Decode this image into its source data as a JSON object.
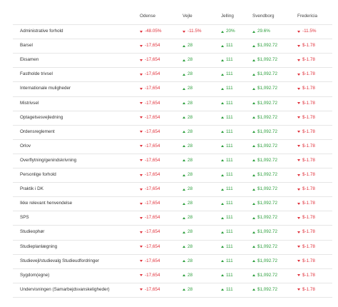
{
  "table": {
    "columns": [
      "Odense",
      "Vejle",
      "Jelling",
      "Svendborg",
      "Fredericia"
    ],
    "rows": [
      {
        "label": "Administrative forhold",
        "cells": [
          {
            "text": "-48.05%",
            "trend": "down"
          },
          {
            "text": "-11.5%",
            "trend": "down"
          },
          {
            "text": "20%",
            "trend": "up"
          },
          {
            "text": "29.6%",
            "trend": "up"
          },
          {
            "text": "-11.5%",
            "trend": "down"
          }
        ]
      },
      {
        "label": "Barsel",
        "cells": [
          {
            "text": "-17,654",
            "trend": "down"
          },
          {
            "text": "28",
            "trend": "up"
          },
          {
            "text": "111",
            "trend": "up"
          },
          {
            "text": "$1,092.72",
            "trend": "up"
          },
          {
            "text": "$-1.78",
            "trend": "down"
          }
        ]
      },
      {
        "label": "Eksamen",
        "cells": [
          {
            "text": "-17,654",
            "trend": "down"
          },
          {
            "text": "28",
            "trend": "up"
          },
          {
            "text": "111",
            "trend": "up"
          },
          {
            "text": "$1,092.72",
            "trend": "up"
          },
          {
            "text": "$-1.78",
            "trend": "down"
          }
        ]
      },
      {
        "label": "Fastholde trivsel",
        "cells": [
          {
            "text": "-17,654",
            "trend": "down"
          },
          {
            "text": "28",
            "trend": "up"
          },
          {
            "text": "111",
            "trend": "up"
          },
          {
            "text": "$1,092.72",
            "trend": "up"
          },
          {
            "text": "$-1.78",
            "trend": "down"
          }
        ]
      },
      {
        "label": "Internationale muligheder",
        "cells": [
          {
            "text": "-17,654",
            "trend": "down"
          },
          {
            "text": "28",
            "trend": "up"
          },
          {
            "text": "111",
            "trend": "up"
          },
          {
            "text": "$1,092.72",
            "trend": "up"
          },
          {
            "text": "$-1.78",
            "trend": "down"
          }
        ]
      },
      {
        "label": "Mistrivsel",
        "cells": [
          {
            "text": "-17,654",
            "trend": "down"
          },
          {
            "text": "28",
            "trend": "up"
          },
          {
            "text": "111",
            "trend": "up"
          },
          {
            "text": "$1,092.72",
            "trend": "up"
          },
          {
            "text": "$-1.78",
            "trend": "down"
          }
        ]
      },
      {
        "label": "Optagelsesvejledning",
        "cells": [
          {
            "text": "-17,654",
            "trend": "down"
          },
          {
            "text": "28",
            "trend": "up"
          },
          {
            "text": "111",
            "trend": "up"
          },
          {
            "text": "$1,092.72",
            "trend": "up"
          },
          {
            "text": "$-1.78",
            "trend": "down"
          }
        ]
      },
      {
        "label": "Ordensreglement",
        "cells": [
          {
            "text": "-17,654",
            "trend": "down"
          },
          {
            "text": "28",
            "trend": "up"
          },
          {
            "text": "111",
            "trend": "up"
          },
          {
            "text": "$1,092.72",
            "trend": "up"
          },
          {
            "text": "$-1.78",
            "trend": "down"
          }
        ]
      },
      {
        "label": "Orlov",
        "cells": [
          {
            "text": "-17,654",
            "trend": "down"
          },
          {
            "text": "28",
            "trend": "up"
          },
          {
            "text": "111",
            "trend": "up"
          },
          {
            "text": "$1,092.72",
            "trend": "up"
          },
          {
            "text": "$-1.78",
            "trend": "down"
          }
        ]
      },
      {
        "label": "Overflytning/genindskrivning",
        "cells": [
          {
            "text": "-17,654",
            "trend": "down"
          },
          {
            "text": "28",
            "trend": "up"
          },
          {
            "text": "111",
            "trend": "up"
          },
          {
            "text": "$1,092.72",
            "trend": "up"
          },
          {
            "text": "$-1.78",
            "trend": "down"
          }
        ]
      },
      {
        "label": "Personlige forhold",
        "cells": [
          {
            "text": "-17,654",
            "trend": "down"
          },
          {
            "text": "28",
            "trend": "up"
          },
          {
            "text": "111",
            "trend": "up"
          },
          {
            "text": "$1,092.72",
            "trend": "up"
          },
          {
            "text": "$-1.78",
            "trend": "down"
          }
        ]
      },
      {
        "label": "Praktik i DK",
        "cells": [
          {
            "text": "-17,654",
            "trend": "down"
          },
          {
            "text": "28",
            "trend": "up"
          },
          {
            "text": "111",
            "trend": "up"
          },
          {
            "text": "$1,092.72",
            "trend": "up"
          },
          {
            "text": "$-1.78",
            "trend": "down"
          }
        ]
      },
      {
        "label": "Ikke relevant henvendelse",
        "cells": [
          {
            "text": "-17,654",
            "trend": "down"
          },
          {
            "text": "28",
            "trend": "up"
          },
          {
            "text": "111",
            "trend": "up"
          },
          {
            "text": "$1,092.72",
            "trend": "up"
          },
          {
            "text": "$-1.78",
            "trend": "down"
          }
        ]
      },
      {
        "label": "SPS",
        "cells": [
          {
            "text": "-17,654",
            "trend": "down"
          },
          {
            "text": "28",
            "trend": "up"
          },
          {
            "text": "111",
            "trend": "up"
          },
          {
            "text": "$1,092.72",
            "trend": "up"
          },
          {
            "text": "$-1.78",
            "trend": "down"
          }
        ]
      },
      {
        "label": "Studieophør",
        "cells": [
          {
            "text": "-17,654",
            "trend": "down"
          },
          {
            "text": "28",
            "trend": "up"
          },
          {
            "text": "111",
            "trend": "up"
          },
          {
            "text": "$1,092.72",
            "trend": "up"
          },
          {
            "text": "$-1.78",
            "trend": "down"
          }
        ]
      },
      {
        "label": "Studieplanlægning",
        "cells": [
          {
            "text": "-17,654",
            "trend": "down"
          },
          {
            "text": "28",
            "trend": "up"
          },
          {
            "text": "111",
            "trend": "up"
          },
          {
            "text": "$1,092.72",
            "trend": "up"
          },
          {
            "text": "$-1.78",
            "trend": "down"
          }
        ]
      },
      {
        "label": "Studievejl/studievalg Studieudfordringer",
        "cells": [
          {
            "text": "-17,654",
            "trend": "down"
          },
          {
            "text": "28",
            "trend": "up"
          },
          {
            "text": "111",
            "trend": "up"
          },
          {
            "text": "$1,092.72",
            "trend": "up"
          },
          {
            "text": "$-1.78",
            "trend": "down"
          }
        ]
      },
      {
        "label": "Sygdom(egne)",
        "cells": [
          {
            "text": "-17,654",
            "trend": "down"
          },
          {
            "text": "28",
            "trend": "up"
          },
          {
            "text": "111",
            "trend": "up"
          },
          {
            "text": "$1,092.72",
            "trend": "up"
          },
          {
            "text": "$-1.78",
            "trend": "down"
          }
        ]
      },
      {
        "label": "Undervisningen (Samarbejdsvanskeligheder)",
        "cells": [
          {
            "text": "-17,654",
            "trend": "down"
          },
          {
            "text": "28",
            "trend": "up"
          },
          {
            "text": "111",
            "trend": "up"
          },
          {
            "text": "$1,092.72",
            "trend": "up"
          },
          {
            "text": "$-1.78",
            "trend": "down"
          }
        ]
      }
    ]
  }
}
